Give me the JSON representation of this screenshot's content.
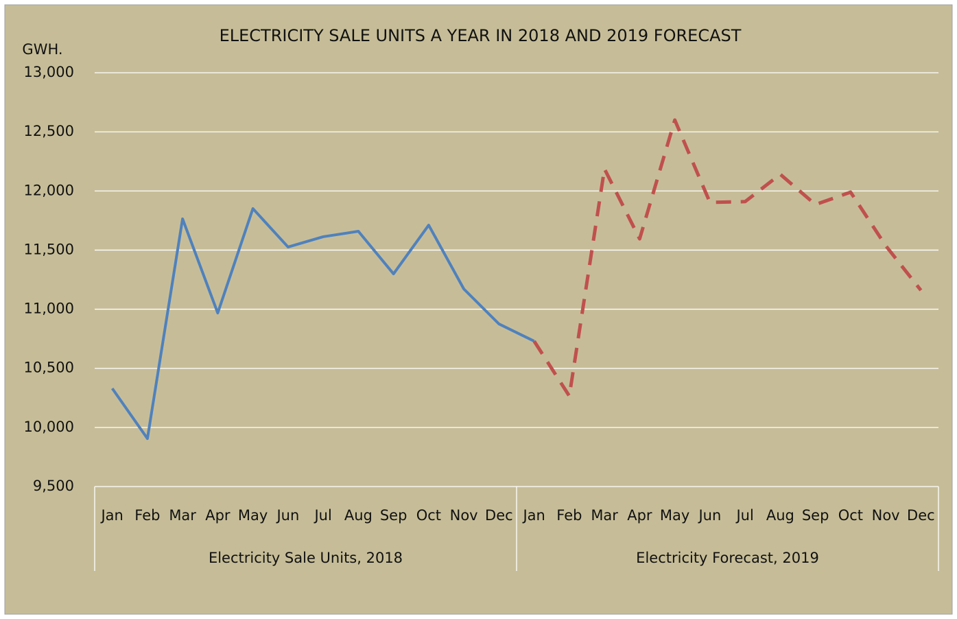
{
  "chart_data": {
    "type": "line",
    "title": "ELECTRICITY SALE UNITS A YEAR IN 2018 AND 2019 FORECAST",
    "y_label": "GWH.",
    "categories": [
      "Jan",
      "Feb",
      "Mar",
      "Apr",
      "May",
      "Jun",
      "Jul",
      "Aug",
      "Sep",
      "Oct",
      "Nov",
      "Dec",
      "Jan",
      "Feb",
      "Mar",
      "Apr",
      "May",
      "Jun",
      "Jul",
      "Aug",
      "Sep",
      "Oct",
      "Nov",
      "Dec"
    ],
    "groups": [
      "Electricity Sale Units, 2018",
      "Electricity Forecast, 2019"
    ],
    "series": [
      {
        "color": "#4f81bd",
        "dashed": false,
        "values": [
          10330,
          9906,
          11764,
          10968,
          11851,
          11526,
          11613,
          11659,
          11299,
          11711,
          11171,
          10875,
          10730,
          null,
          null,
          null,
          null,
          null,
          null,
          null,
          null,
          null,
          null,
          null
        ]
      },
      {
        "color": "#c0504d",
        "dashed": true,
        "values": [
          null,
          null,
          null,
          null,
          null,
          null,
          null,
          null,
          null,
          null,
          null,
          null,
          10730,
          10266,
          12187,
          11595,
          12600,
          11903,
          11910,
          12141,
          11885,
          11990,
          11537,
          11160
        ]
      }
    ],
    "ylim": [
      9500,
      13000
    ],
    "yticks": [
      {
        "value": 9500,
        "label": "9,500"
      },
      {
        "value": 10000,
        "label": "10,000"
      },
      {
        "value": 10500,
        "label": "10,500"
      },
      {
        "value": 11000,
        "label": "11,000"
      },
      {
        "value": 11500,
        "label": "11,500"
      },
      {
        "value": 12000,
        "label": "12,000"
      },
      {
        "value": 12500,
        "label": "12,500"
      },
      {
        "value": 13000,
        "label": "13,000"
      }
    ],
    "grid": true,
    "background": "#c6bd98"
  }
}
